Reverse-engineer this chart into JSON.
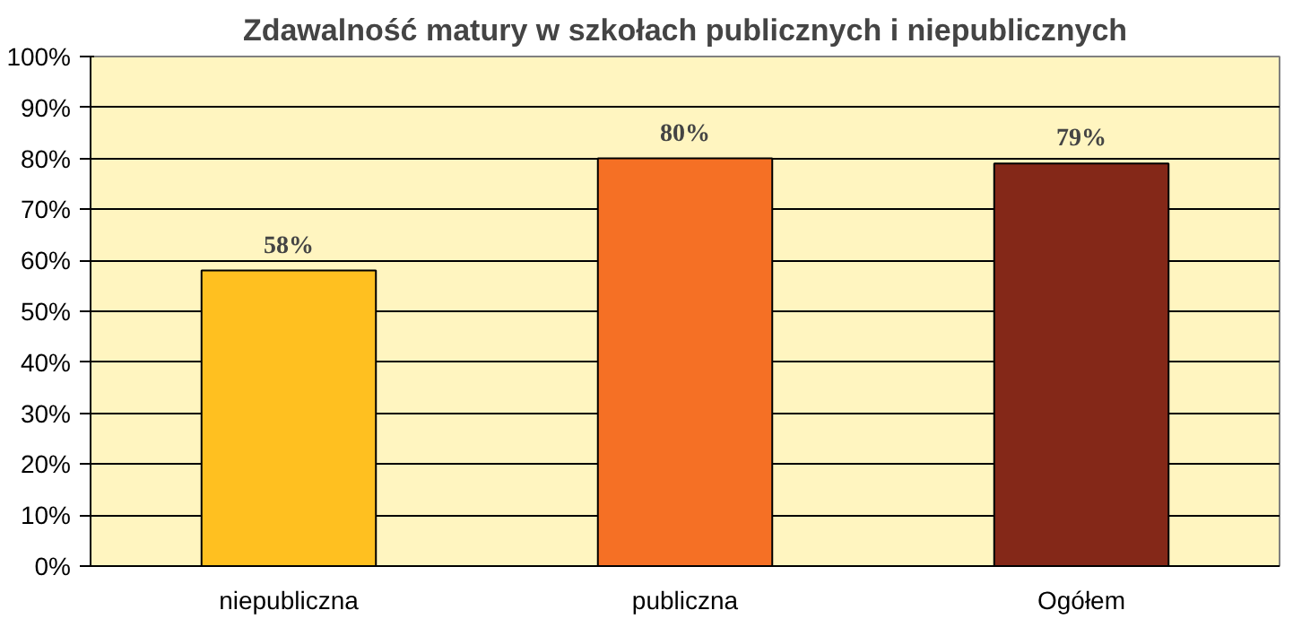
{
  "chart_data": {
    "type": "bar",
    "title": "Zdawalność matury w szkołach publicznych i niepublicznych",
    "categories": [
      "niepubliczna",
      "publiczna",
      "Ogółem"
    ],
    "values": [
      58,
      80,
      79
    ],
    "colors": [
      "#ffc020",
      "#f57025",
      "#842818"
    ],
    "value_labels": [
      "58%",
      "80%",
      "79%"
    ],
    "ylim": [
      0,
      100
    ],
    "yticks": [
      {
        "value": 0,
        "label": "0%"
      },
      {
        "value": 10,
        "label": "10%"
      },
      {
        "value": 20,
        "label": "20%"
      },
      {
        "value": 30,
        "label": "30%"
      },
      {
        "value": 40,
        "label": "40%"
      },
      {
        "value": 50,
        "label": "50%"
      },
      {
        "value": 60,
        "label": "60%"
      },
      {
        "value": 70,
        "label": "70%"
      },
      {
        "value": 80,
        "label": "80%"
      },
      {
        "value": 90,
        "label": "90%"
      },
      {
        "value": 100,
        "label": "100%"
      }
    ],
    "grid": "y"
  }
}
